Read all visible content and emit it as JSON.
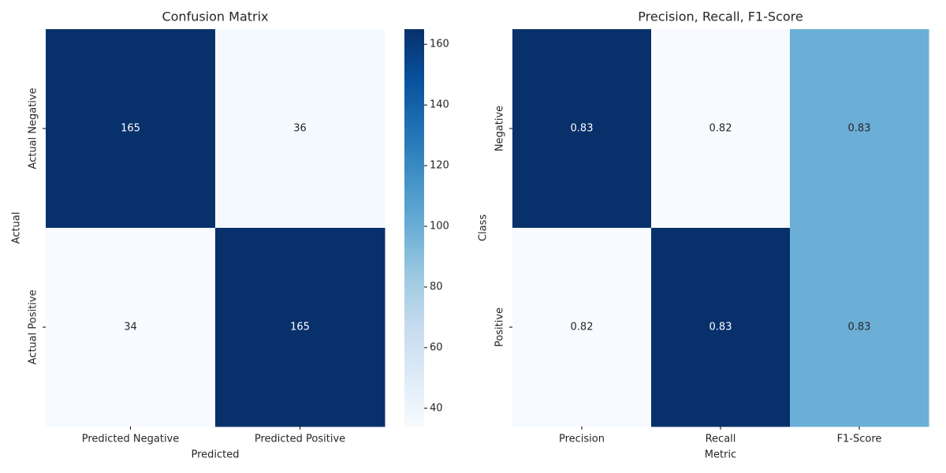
{
  "chart_data": [
    {
      "type": "heatmap",
      "title": "Confusion Matrix",
      "xlabel": "Predicted",
      "ylabel": "Actual",
      "x_categories": [
        "Predicted Negative",
        "Predicted Positive"
      ],
      "y_categories": [
        "Actual Negative",
        "Actual Positive"
      ],
      "values": [
        [
          165,
          36
        ],
        [
          34,
          165
        ]
      ],
      "colormap": [
        "#f7fbff",
        "#deebf7",
        "#c6dbef",
        "#9ecae1",
        "#6baed6",
        "#4292c6",
        "#2171b5",
        "#08519c",
        "#08306b"
      ],
      "colorbar": true,
      "clim": [
        34,
        165
      ],
      "cticks": [
        40,
        60,
        80,
        100,
        120,
        140,
        160
      ]
    },
    {
      "type": "heatmap",
      "title": "Precision, Recall, F1-Score",
      "xlabel": "Metric",
      "ylabel": "Class",
      "x_categories": [
        "Precision",
        "Recall",
        "F1-Score"
      ],
      "y_categories": [
        "Negative",
        "Positive"
      ],
      "values": [
        [
          0.8291,
          0.8209,
          0.825
        ],
        [
          0.8209,
          0.8291,
          0.825
        ]
      ],
      "value_labels": [
        [
          "0.83",
          "0.82",
          "0.83"
        ],
        [
          "0.82",
          "0.83",
          "0.83"
        ]
      ],
      "colormap": [
        "#f7fbff",
        "#deebf7",
        "#c6dbef",
        "#9ecae1",
        "#6baed6",
        "#4292c6",
        "#2171b5",
        "#08519c",
        "#08306b"
      ],
      "colorbar": false
    }
  ]
}
